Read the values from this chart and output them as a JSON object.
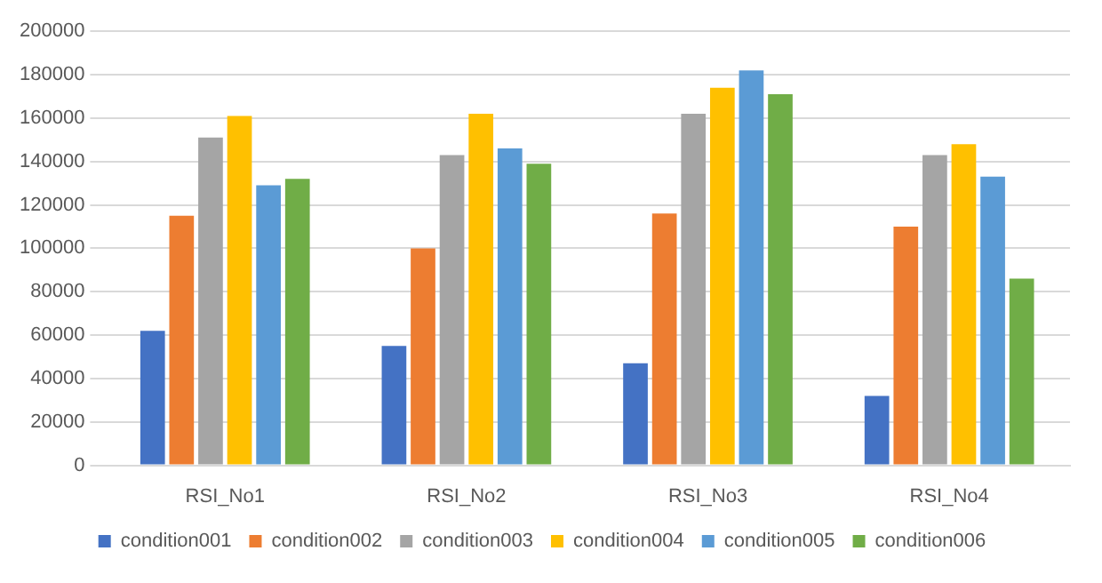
{
  "chart_data": {
    "type": "bar",
    "categories": [
      "RSI_No1",
      "RSI_No2",
      "RSI_No3",
      "RSI_No4"
    ],
    "series": [
      {
        "name": "condition001",
        "color": "#4472c4",
        "values": [
          62000,
          55000,
          47000,
          32000
        ]
      },
      {
        "name": "condition002",
        "color": "#ed7d31",
        "values": [
          115000,
          100000,
          116000,
          110000
        ]
      },
      {
        "name": "condition003",
        "color": "#a5a5a5",
        "values": [
          151000,
          143000,
          162000,
          143000
        ]
      },
      {
        "name": "condition004",
        "color": "#ffc000",
        "values": [
          161000,
          162000,
          174000,
          148000
        ]
      },
      {
        "name": "condition005",
        "color": "#5b9bd5",
        "values": [
          129000,
          146000,
          182000,
          133000
        ]
      },
      {
        "name": "condition006",
        "color": "#70ad47",
        "values": [
          132000,
          139000,
          171000,
          86000
        ]
      }
    ],
    "ylim": [
      0,
      200000
    ],
    "yticks": [
      0,
      20000,
      40000,
      60000,
      80000,
      100000,
      120000,
      140000,
      160000,
      180000,
      200000
    ],
    "grid": "y",
    "legend": "bottom"
  }
}
